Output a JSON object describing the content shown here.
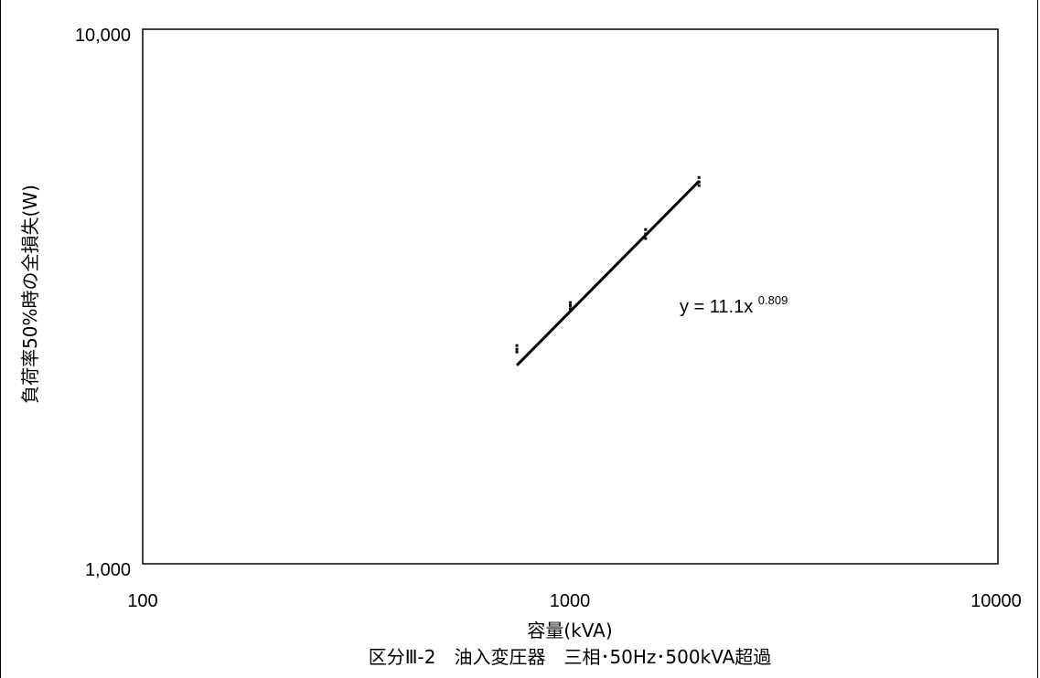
{
  "chart_data": {
    "type": "scatter",
    "title": "区分Ⅲ-2　油入変圧器　三相･50Hz･500kVA超過",
    "xlabel": "容量(kVA)",
    "ylabel": "負荷率50%時の全損失(W)",
    "x_scale": "log",
    "y_scale": "log",
    "xlim": [
      100,
      10000
    ],
    "ylim": [
      1000,
      10000
    ],
    "x_ticks": [
      "100",
      "1000",
      "10000"
    ],
    "y_ticks": [
      "1,000",
      "10,000"
    ],
    "grid": false,
    "marker_color": "#000000",
    "series": [
      {
        "points": [
          [
            750,
            2560
          ],
          [
            750,
            2520
          ],
          [
            750,
            2490
          ],
          [
            1000,
            3080
          ],
          [
            1000,
            3040
          ],
          [
            1000,
            3000
          ],
          [
            1500,
            4220
          ],
          [
            1500,
            4140
          ],
          [
            1500,
            4060
          ],
          [
            2000,
            5280
          ],
          [
            2000,
            5180
          ],
          [
            2000,
            5100
          ]
        ]
      }
    ],
    "trendline": {
      "type": "power",
      "coefficient": 11.1,
      "exponent": 0.809,
      "x_range": [
        750,
        2000
      ],
      "label_prefix": "y = 11.1x",
      "label_exponent": "0.809"
    }
  }
}
